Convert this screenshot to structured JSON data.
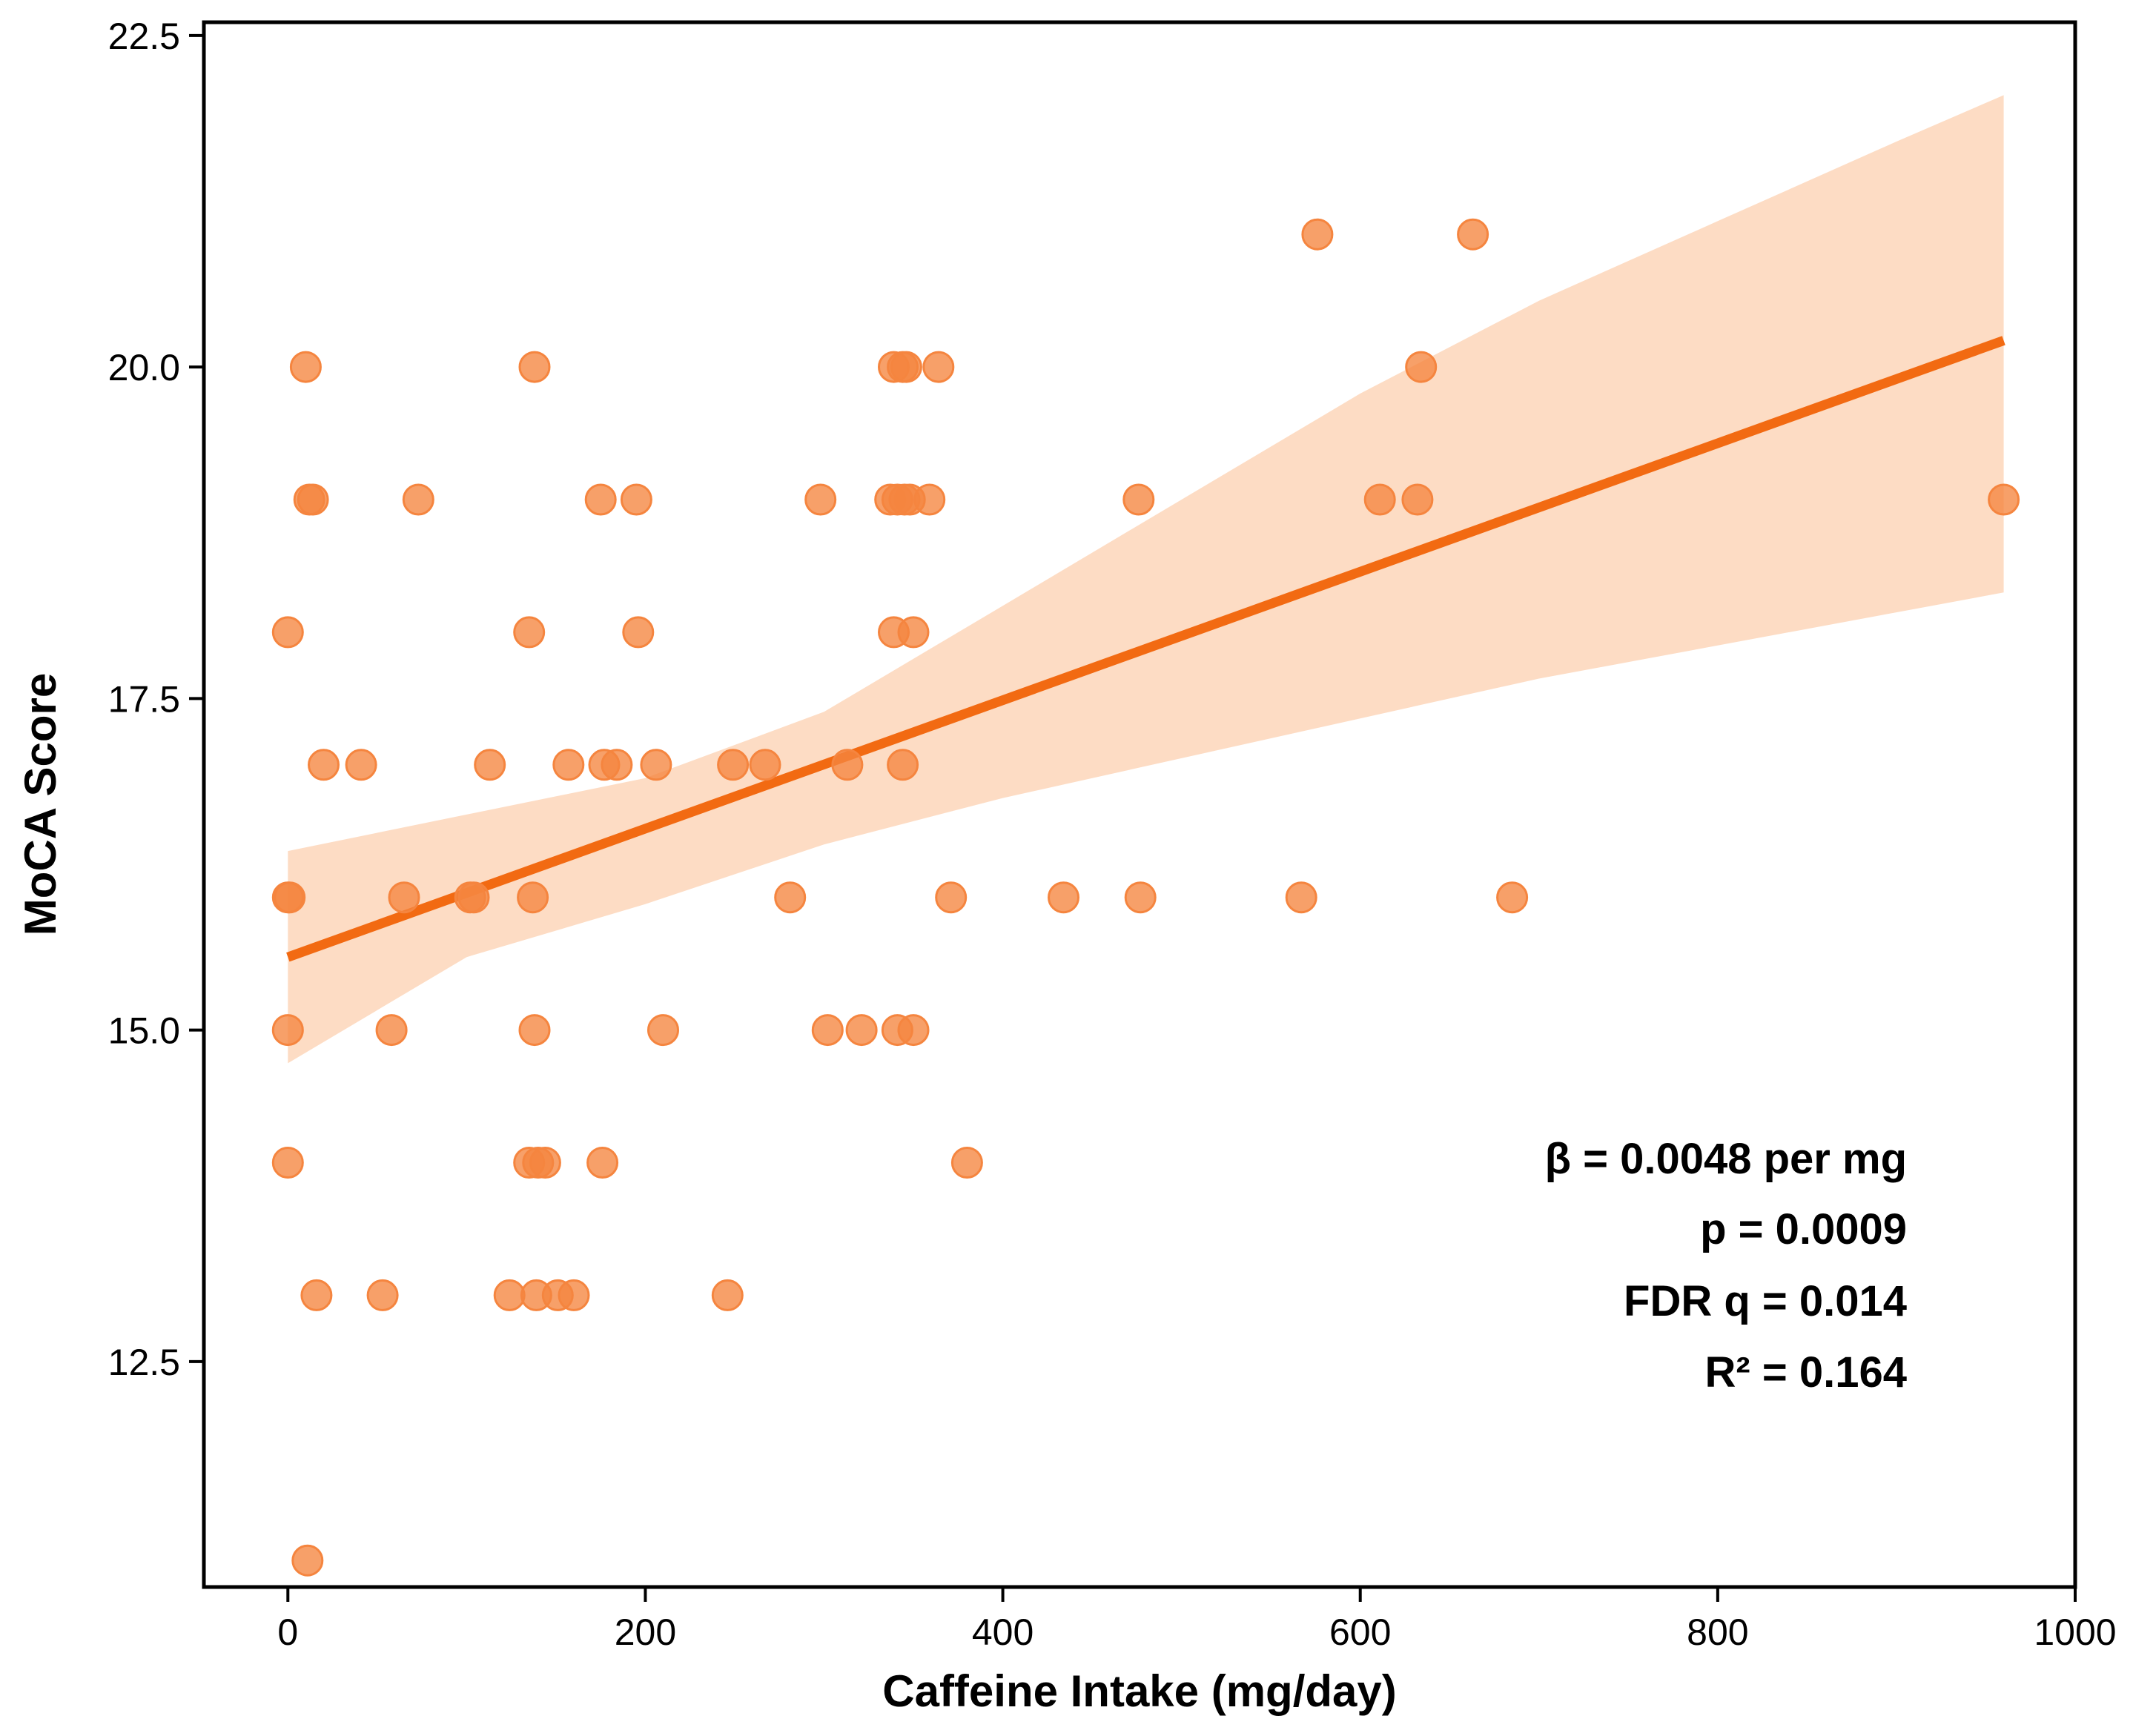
{
  "chart_data": {
    "type": "scatter",
    "title": "",
    "xlabel": "Caffeine Intake (mg/day)",
    "ylabel": "MoCA Score",
    "xlim": [
      -47,
      1000
    ],
    "ylim": [
      10.8,
      22.6
    ],
    "xticks": [
      0,
      200,
      400,
      600,
      800,
      1000
    ],
    "xtick_labels": [
      "0",
      "200",
      "400",
      "600",
      "800",
      "1000"
    ],
    "yticks": [
      12.5,
      15.0,
      17.5,
      20.0,
      22.5
    ],
    "ytick_labels": [
      "12.5",
      "15.0",
      "17.5",
      "20.0",
      "22.5"
    ],
    "grid": false,
    "point_color": "#f5853f",
    "line_color": "#f26a12",
    "band_color": "#fddcc4",
    "points": [
      {
        "x": 10,
        "y": 20
      },
      {
        "x": 138,
        "y": 20
      },
      {
        "x": 339,
        "y": 20
      },
      {
        "x": 344,
        "y": 20
      },
      {
        "x": 346,
        "y": 20
      },
      {
        "x": 364,
        "y": 20
      },
      {
        "x": 634,
        "y": 20
      },
      {
        "x": 576,
        "y": 21
      },
      {
        "x": 663,
        "y": 21
      },
      {
        "x": 12,
        "y": 19
      },
      {
        "x": 14,
        "y": 19
      },
      {
        "x": 73,
        "y": 19
      },
      {
        "x": 175,
        "y": 19
      },
      {
        "x": 195,
        "y": 19
      },
      {
        "x": 298,
        "y": 19
      },
      {
        "x": 337,
        "y": 19
      },
      {
        "x": 341,
        "y": 19
      },
      {
        "x": 345,
        "y": 19
      },
      {
        "x": 348,
        "y": 19
      },
      {
        "x": 359,
        "y": 19
      },
      {
        "x": 476,
        "y": 19
      },
      {
        "x": 611,
        "y": 19
      },
      {
        "x": 632,
        "y": 19
      },
      {
        "x": 960,
        "y": 19
      },
      {
        "x": 0,
        "y": 18
      },
      {
        "x": 135,
        "y": 18
      },
      {
        "x": 196,
        "y": 18
      },
      {
        "x": 339,
        "y": 18
      },
      {
        "x": 350,
        "y": 18
      },
      {
        "x": 20,
        "y": 17
      },
      {
        "x": 41,
        "y": 17
      },
      {
        "x": 113,
        "y": 17
      },
      {
        "x": 157,
        "y": 17
      },
      {
        "x": 177,
        "y": 17
      },
      {
        "x": 184,
        "y": 17
      },
      {
        "x": 206,
        "y": 17
      },
      {
        "x": 249,
        "y": 17
      },
      {
        "x": 267,
        "y": 17
      },
      {
        "x": 313,
        "y": 17
      },
      {
        "x": 344,
        "y": 17
      },
      {
        "x": 0,
        "y": 16
      },
      {
        "x": 1,
        "y": 16
      },
      {
        "x": 65,
        "y": 16
      },
      {
        "x": 102,
        "y": 16
      },
      {
        "x": 104,
        "y": 16
      },
      {
        "x": 137,
        "y": 16
      },
      {
        "x": 281,
        "y": 16
      },
      {
        "x": 371,
        "y": 16
      },
      {
        "x": 434,
        "y": 16
      },
      {
        "x": 477,
        "y": 16
      },
      {
        "x": 567,
        "y": 16
      },
      {
        "x": 685,
        "y": 16
      },
      {
        "x": 0,
        "y": 15
      },
      {
        "x": 58,
        "y": 15
      },
      {
        "x": 138,
        "y": 15
      },
      {
        "x": 210,
        "y": 15
      },
      {
        "x": 302,
        "y": 15
      },
      {
        "x": 321,
        "y": 15
      },
      {
        "x": 341,
        "y": 15
      },
      {
        "x": 350,
        "y": 15
      },
      {
        "x": 0,
        "y": 14
      },
      {
        "x": 135,
        "y": 14
      },
      {
        "x": 140,
        "y": 14
      },
      {
        "x": 144,
        "y": 14
      },
      {
        "x": 176,
        "y": 14
      },
      {
        "x": 380,
        "y": 14
      },
      {
        "x": 16,
        "y": 13
      },
      {
        "x": 53,
        "y": 13
      },
      {
        "x": 124,
        "y": 13
      },
      {
        "x": 139,
        "y": 13
      },
      {
        "x": 151,
        "y": 13
      },
      {
        "x": 160,
        "y": 13
      },
      {
        "x": 246,
        "y": 13
      },
      {
        "x": 11,
        "y": 11
      }
    ],
    "regression": {
      "x": [
        0,
        960
      ],
      "y": [
        15.55,
        20.2
      ],
      "ci_upper": [
        [
          0,
          16.35
        ],
        [
          200,
          16.9
        ],
        [
          300,
          17.4
        ],
        [
          400,
          18.2
        ],
        [
          500,
          19.0
        ],
        [
          600,
          19.8
        ],
        [
          700,
          20.5
        ],
        [
          800,
          21.1
        ],
        [
          900,
          21.7
        ],
        [
          960,
          22.05
        ]
      ],
      "ci_lower": [
        [
          0,
          14.75
        ],
        [
          100,
          15.55
        ],
        [
          200,
          15.95
        ],
        [
          300,
          16.4
        ],
        [
          400,
          16.75
        ],
        [
          500,
          17.05
        ],
        [
          600,
          17.35
        ],
        [
          700,
          17.65
        ],
        [
          800,
          17.9
        ],
        [
          900,
          18.15
        ],
        [
          960,
          18.3
        ]
      ]
    },
    "annotations": [
      "β = 0.0048 per mg",
      "p = 0.0009",
      "FDR q = 0.014",
      "R² = 0.164"
    ]
  }
}
